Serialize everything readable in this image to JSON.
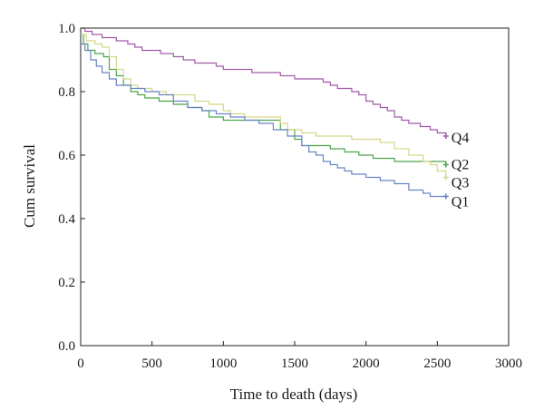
{
  "chart_data": {
    "type": "line",
    "step": true,
    "xlabel": "Time to death (days)",
    "ylabel": "Cum survival",
    "xlim": [
      0,
      3000
    ],
    "ylim": [
      0.0,
      1.0
    ],
    "x_ticks": [
      "0",
      "500",
      "1000",
      "1500",
      "2000",
      "2500",
      "3000"
    ],
    "x_tick_values": [
      0,
      500,
      1000,
      1500,
      2000,
      2500,
      3000
    ],
    "y_ticks": [
      "0.0",
      "0.2",
      "0.4",
      "0.6",
      "0.8",
      "1.0"
    ],
    "y_tick_values": [
      0.0,
      0.2,
      0.4,
      0.6,
      0.8,
      1.0
    ],
    "grid": false,
    "series": [
      {
        "name": "Q4",
        "color": "#a05aa8",
        "points": [
          [
            0,
            1.0
          ],
          [
            30,
            0.99
          ],
          [
            80,
            0.98
          ],
          [
            150,
            0.97
          ],
          [
            250,
            0.96
          ],
          [
            330,
            0.95
          ],
          [
            380,
            0.94
          ],
          [
            430,
            0.93
          ],
          [
            500,
            0.93
          ],
          [
            560,
            0.92
          ],
          [
            650,
            0.91
          ],
          [
            720,
            0.9
          ],
          [
            800,
            0.89
          ],
          [
            900,
            0.89
          ],
          [
            950,
            0.88
          ],
          [
            1000,
            0.87
          ],
          [
            1100,
            0.87
          ],
          [
            1200,
            0.86
          ],
          [
            1300,
            0.86
          ],
          [
            1400,
            0.85
          ],
          [
            1500,
            0.84
          ],
          [
            1600,
            0.84
          ],
          [
            1700,
            0.83
          ],
          [
            1750,
            0.82
          ],
          [
            1800,
            0.81
          ],
          [
            1900,
            0.8
          ],
          [
            1950,
            0.79
          ],
          [
            2000,
            0.77
          ],
          [
            2050,
            0.76
          ],
          [
            2100,
            0.75
          ],
          [
            2150,
            0.74
          ],
          [
            2200,
            0.72
          ],
          [
            2250,
            0.71
          ],
          [
            2300,
            0.7
          ],
          [
            2380,
            0.69
          ],
          [
            2450,
            0.68
          ],
          [
            2500,
            0.67
          ],
          [
            2560,
            0.66
          ]
        ]
      },
      {
        "name": "Q2",
        "color": "#4aa84a",
        "points": [
          [
            0,
            0.98
          ],
          [
            20,
            0.95
          ],
          [
            50,
            0.93
          ],
          [
            100,
            0.92
          ],
          [
            160,
            0.91
          ],
          [
            200,
            0.87
          ],
          [
            250,
            0.85
          ],
          [
            300,
            0.82
          ],
          [
            350,
            0.8
          ],
          [
            400,
            0.79
          ],
          [
            450,
            0.78
          ],
          [
            550,
            0.77
          ],
          [
            650,
            0.76
          ],
          [
            750,
            0.75
          ],
          [
            850,
            0.74
          ],
          [
            900,
            0.72
          ],
          [
            1000,
            0.71
          ],
          [
            1100,
            0.71
          ],
          [
            1200,
            0.71
          ],
          [
            1300,
            0.71
          ],
          [
            1400,
            0.68
          ],
          [
            1500,
            0.65
          ],
          [
            1550,
            0.63
          ],
          [
            1650,
            0.63
          ],
          [
            1750,
            0.62
          ],
          [
            1850,
            0.61
          ],
          [
            1950,
            0.6
          ],
          [
            2050,
            0.59
          ],
          [
            2200,
            0.58
          ],
          [
            2400,
            0.58
          ],
          [
            2560,
            0.57
          ]
        ]
      },
      {
        "name": "Q3",
        "color": "#d6d68c",
        "points": [
          [
            0,
            0.98
          ],
          [
            40,
            0.96
          ],
          [
            100,
            0.95
          ],
          [
            150,
            0.94
          ],
          [
            200,
            0.91
          ],
          [
            250,
            0.87
          ],
          [
            300,
            0.84
          ],
          [
            350,
            0.82
          ],
          [
            400,
            0.81
          ],
          [
            500,
            0.8
          ],
          [
            600,
            0.79
          ],
          [
            700,
            0.79
          ],
          [
            800,
            0.77
          ],
          [
            900,
            0.76
          ],
          [
            1000,
            0.74
          ],
          [
            1050,
            0.73
          ],
          [
            1150,
            0.72
          ],
          [
            1300,
            0.72
          ],
          [
            1400,
            0.7
          ],
          [
            1450,
            0.68
          ],
          [
            1550,
            0.67
          ],
          [
            1650,
            0.66
          ],
          [
            1800,
            0.66
          ],
          [
            1900,
            0.65
          ],
          [
            2000,
            0.65
          ],
          [
            2100,
            0.64
          ],
          [
            2200,
            0.62
          ],
          [
            2300,
            0.6
          ],
          [
            2400,
            0.58
          ],
          [
            2450,
            0.57
          ],
          [
            2500,
            0.55
          ],
          [
            2560,
            0.53
          ]
        ]
      },
      {
        "name": "Q1",
        "color": "#6a84c4",
        "points": [
          [
            0,
            0.95
          ],
          [
            30,
            0.93
          ],
          [
            70,
            0.9
          ],
          [
            110,
            0.88
          ],
          [
            150,
            0.86
          ],
          [
            200,
            0.84
          ],
          [
            250,
            0.82
          ],
          [
            350,
            0.81
          ],
          [
            450,
            0.8
          ],
          [
            550,
            0.79
          ],
          [
            650,
            0.77
          ],
          [
            750,
            0.75
          ],
          [
            850,
            0.74
          ],
          [
            950,
            0.73
          ],
          [
            1050,
            0.72
          ],
          [
            1150,
            0.71
          ],
          [
            1250,
            0.7
          ],
          [
            1350,
            0.68
          ],
          [
            1450,
            0.66
          ],
          [
            1550,
            0.63
          ],
          [
            1600,
            0.61
          ],
          [
            1650,
            0.6
          ],
          [
            1700,
            0.58
          ],
          [
            1750,
            0.57
          ],
          [
            1800,
            0.56
          ],
          [
            1850,
            0.55
          ],
          [
            1900,
            0.54
          ],
          [
            2000,
            0.53
          ],
          [
            2100,
            0.52
          ],
          [
            2200,
            0.51
          ],
          [
            2300,
            0.49
          ],
          [
            2400,
            0.48
          ],
          [
            2450,
            0.47
          ],
          [
            2560,
            0.47
          ]
        ]
      }
    ]
  }
}
